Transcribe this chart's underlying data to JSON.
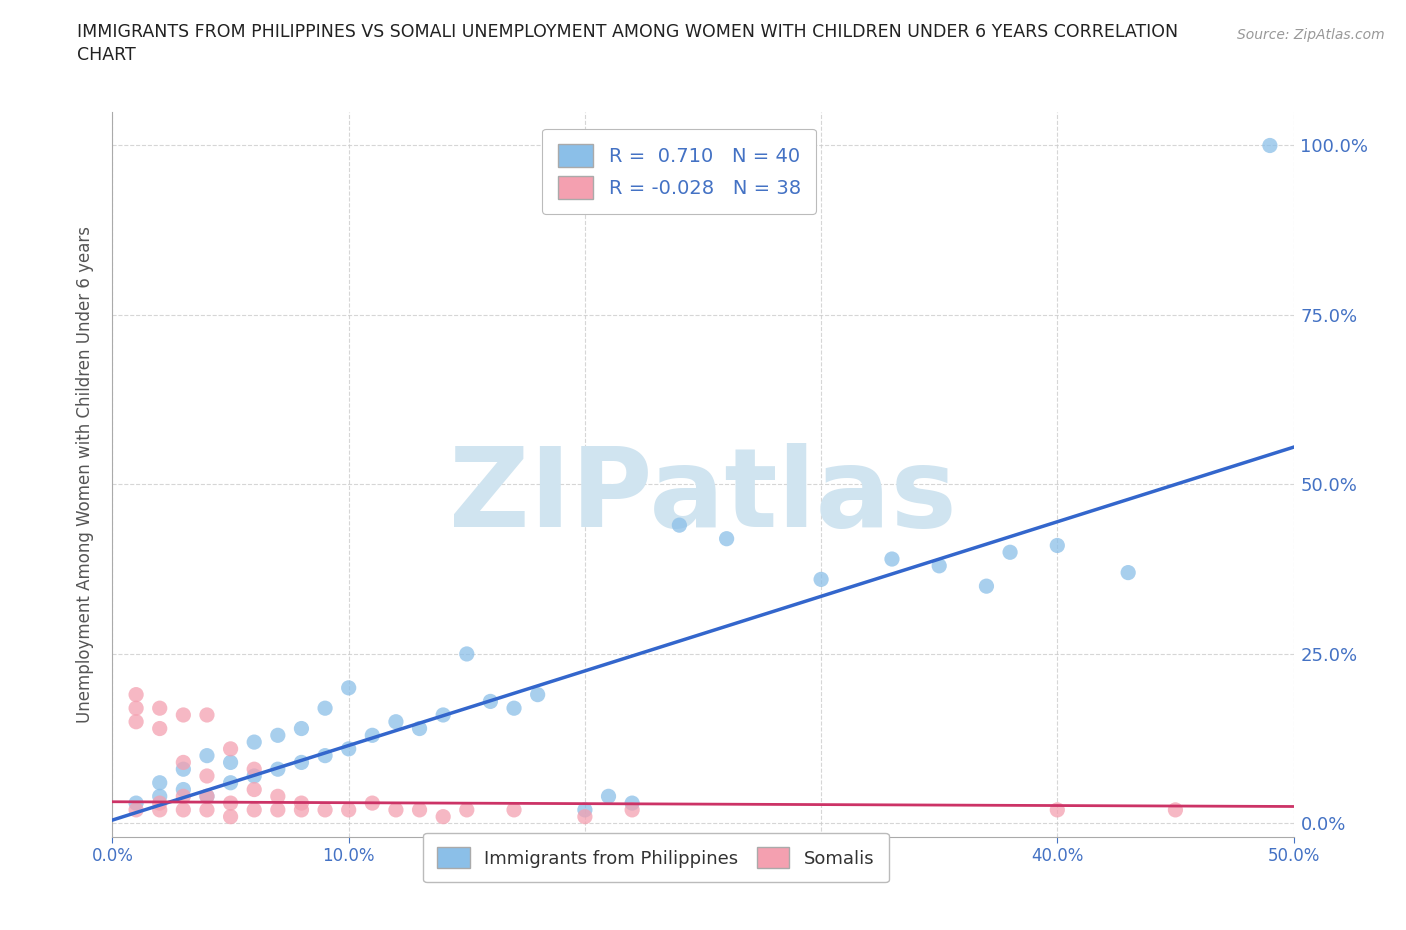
{
  "title_line1": "IMMIGRANTS FROM PHILIPPINES VS SOMALI UNEMPLOYMENT AMONG WOMEN WITH CHILDREN UNDER 6 YEARS CORRELATION",
  "title_line2": "CHART",
  "source": "Source: ZipAtlas.com",
  "ylabel": "Unemployment Among Women with Children Under 6 years",
  "xlim": [
    0,
    0.5
  ],
  "ylim": [
    -0.02,
    1.05
  ],
  "xticks": [
    0.0,
    0.1,
    0.2,
    0.3,
    0.4,
    0.5
  ],
  "yticks": [
    0.0,
    0.25,
    0.5,
    0.75,
    1.0
  ],
  "xtick_labels": [
    "0.0%",
    "10.0%",
    "20.0%",
    "30.0%",
    "40.0%",
    "50.0%"
  ],
  "ytick_labels": [
    "0.0%",
    "25.0%",
    "50.0%",
    "75.0%",
    "100.0%"
  ],
  "blue_R": 0.71,
  "blue_N": 40,
  "pink_R": -0.028,
  "pink_N": 38,
  "blue_color": "#8bbfe8",
  "pink_color": "#f4a0b0",
  "blue_line_color": "#3366cc",
  "pink_line_color": "#cc3366",
  "blue_scatter": [
    [
      0.01,
      0.03
    ],
    [
      0.02,
      0.04
    ],
    [
      0.02,
      0.06
    ],
    [
      0.03,
      0.05
    ],
    [
      0.03,
      0.08
    ],
    [
      0.04,
      0.04
    ],
    [
      0.04,
      0.1
    ],
    [
      0.05,
      0.06
    ],
    [
      0.05,
      0.09
    ],
    [
      0.06,
      0.07
    ],
    [
      0.06,
      0.12
    ],
    [
      0.07,
      0.08
    ],
    [
      0.07,
      0.13
    ],
    [
      0.08,
      0.09
    ],
    [
      0.08,
      0.14
    ],
    [
      0.09,
      0.1
    ],
    [
      0.09,
      0.17
    ],
    [
      0.1,
      0.11
    ],
    [
      0.1,
      0.2
    ],
    [
      0.11,
      0.13
    ],
    [
      0.12,
      0.15
    ],
    [
      0.13,
      0.14
    ],
    [
      0.14,
      0.16
    ],
    [
      0.15,
      0.25
    ],
    [
      0.16,
      0.18
    ],
    [
      0.17,
      0.17
    ],
    [
      0.18,
      0.19
    ],
    [
      0.2,
      0.02
    ],
    [
      0.21,
      0.04
    ],
    [
      0.22,
      0.03
    ],
    [
      0.24,
      0.44
    ],
    [
      0.26,
      0.42
    ],
    [
      0.3,
      0.36
    ],
    [
      0.33,
      0.39
    ],
    [
      0.35,
      0.38
    ],
    [
      0.37,
      0.35
    ],
    [
      0.38,
      0.4
    ],
    [
      0.4,
      0.41
    ],
    [
      0.43,
      0.37
    ],
    [
      0.49,
      1.0
    ]
  ],
  "pink_scatter": [
    [
      0.01,
      0.02
    ],
    [
      0.01,
      0.15
    ],
    [
      0.01,
      0.17
    ],
    [
      0.01,
      0.19
    ],
    [
      0.02,
      0.02
    ],
    [
      0.02,
      0.03
    ],
    [
      0.02,
      0.14
    ],
    [
      0.02,
      0.17
    ],
    [
      0.03,
      0.02
    ],
    [
      0.03,
      0.04
    ],
    [
      0.03,
      0.09
    ],
    [
      0.03,
      0.16
    ],
    [
      0.04,
      0.02
    ],
    [
      0.04,
      0.04
    ],
    [
      0.04,
      0.07
    ],
    [
      0.04,
      0.16
    ],
    [
      0.05,
      0.01
    ],
    [
      0.05,
      0.03
    ],
    [
      0.05,
      0.11
    ],
    [
      0.06,
      0.02
    ],
    [
      0.06,
      0.05
    ],
    [
      0.06,
      0.08
    ],
    [
      0.07,
      0.02
    ],
    [
      0.07,
      0.04
    ],
    [
      0.08,
      0.02
    ],
    [
      0.08,
      0.03
    ],
    [
      0.09,
      0.02
    ],
    [
      0.1,
      0.02
    ],
    [
      0.11,
      0.03
    ],
    [
      0.12,
      0.02
    ],
    [
      0.13,
      0.02
    ],
    [
      0.14,
      0.01
    ],
    [
      0.15,
      0.02
    ],
    [
      0.17,
      0.02
    ],
    [
      0.2,
      0.01
    ],
    [
      0.22,
      0.02
    ],
    [
      0.4,
      0.02
    ],
    [
      0.45,
      0.02
    ]
  ],
  "watermark": "ZIPatlas",
  "watermark_color": "#d0e4f0",
  "legend_labels": [
    "Immigrants from Philippines",
    "Somalis"
  ],
  "background_color": "#ffffff",
  "grid_color": "#cccccc",
  "title_color": "#222222",
  "axis_label_color": "#555555",
  "right_tick_color": "#4472c4",
  "legend_text_color": "#4472c4"
}
